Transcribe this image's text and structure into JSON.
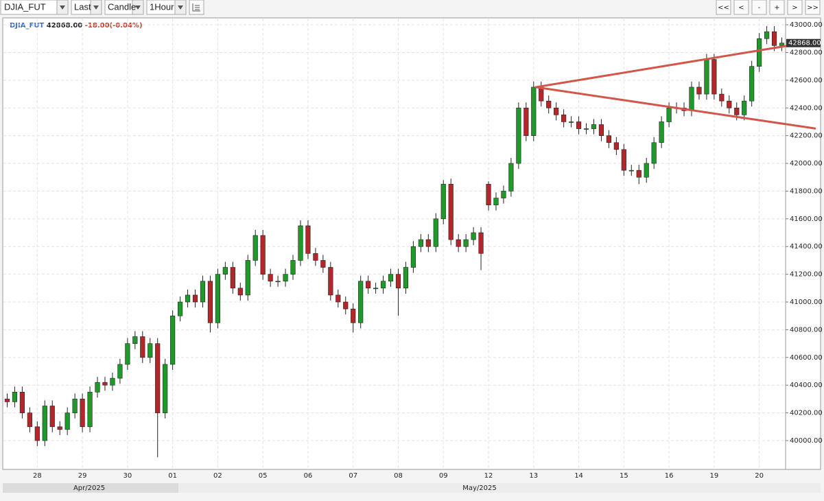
{
  "toolbar": {
    "symbol": "DJIA_FUT",
    "price_type": "Last",
    "chart_type": "Candle",
    "interval": "1Hour",
    "nav": [
      "<<",
      "<",
      "-",
      "+",
      ">",
      ">>"
    ]
  },
  "legend": {
    "symbol": "DJIA_FUT",
    "price": "42868.00",
    "change": "-18.00(-0.04%)"
  },
  "last_price_tag": "42868.00",
  "months": [
    "Apr/2025",
    "May/2025"
  ],
  "chart_data": {
    "type": "candlestick",
    "categories": [
      null,
      null,
      null,
      null,
      "28",
      null,
      null,
      null,
      null,
      null,
      "29",
      null,
      null,
      null,
      null,
      null,
      "30",
      null,
      null,
      null,
      null,
      null,
      "01",
      null,
      null,
      null,
      null,
      null,
      "02",
      null,
      null,
      null,
      null,
      null,
      "05",
      null,
      null,
      null,
      null,
      null,
      "06",
      null,
      null,
      null,
      null,
      null,
      "07",
      null,
      null,
      null,
      null,
      null,
      "08",
      null,
      null,
      null,
      null,
      null,
      "09",
      null,
      null,
      null,
      null,
      null,
      "12",
      null,
      null,
      null,
      null,
      null,
      "13",
      null,
      null,
      null,
      null,
      null,
      "14",
      null,
      null,
      null,
      null,
      null,
      "15",
      null,
      null,
      null,
      null,
      null,
      "16",
      null,
      null,
      null,
      null,
      null,
      "19",
      null,
      null,
      null,
      null,
      null,
      "20",
      null,
      null,
      null
    ],
    "open": [
      40300,
      40280,
      40350,
      40200,
      40100,
      40000,
      40250,
      40100,
      40080,
      40200,
      40300,
      40100,
      40350,
      40420,
      40400,
      40450,
      40550,
      40700,
      40750,
      40600,
      40700,
      40200,
      40550,
      40900,
      41000,
      41050,
      41000,
      41150,
      40850,
      41200,
      41250,
      41100,
      41050,
      41300,
      41480,
      41200,
      41150,
      41150,
      41200,
      41300,
      41550,
      41350,
      41300,
      41250,
      41050,
      41000,
      40950,
      40850,
      41150,
      41100,
      41100,
      41150,
      41200,
      41100,
      41250,
      41400,
      41450,
      41400,
      41600,
      41850,
      41450,
      41400,
      41450,
      41500,
      41850,
      41700,
      41750,
      41800,
      42000,
      42400,
      42200,
      42550,
      42450,
      42400,
      42350,
      42300,
      42300,
      42250,
      42250,
      42280,
      42200,
      42150,
      42100,
      41950,
      41950,
      41900,
      42000,
      42150,
      42300,
      42400,
      42400,
      42380,
      42550,
      42500,
      42750,
      42500,
      42450,
      42400,
      42350,
      42450,
      42700,
      42900,
      42950,
      42850
    ],
    "high": [
      40340,
      40390,
      40390,
      40240,
      40140,
      40290,
      40290,
      40140,
      40240,
      40340,
      40340,
      40390,
      40460,
      40460,
      40490,
      40590,
      40740,
      40790,
      40790,
      40740,
      40740,
      40590,
      40940,
      41040,
      41090,
      41090,
      41190,
      41190,
      41240,
      41290,
      41290,
      41140,
      41340,
      41520,
      41520,
      41240,
      41190,
      41240,
      41340,
      41590,
      41590,
      41390,
      41340,
      41290,
      41090,
      41040,
      40990,
      41190,
      41190,
      41140,
      41190,
      41240,
      41240,
      41290,
      41440,
      41490,
      41490,
      41640,
      41880,
      41890,
      41490,
      41490,
      41540,
      41540,
      41870,
      41790,
      41840,
      42040,
      42440,
      42440,
      42590,
      42590,
      42490,
      42440,
      42390,
      42340,
      42340,
      42290,
      42320,
      42320,
      42240,
      42190,
      42140,
      41990,
      41990,
      42040,
      42190,
      42340,
      42440,
      42440,
      42440,
      42590,
      42590,
      42790,
      42790,
      42540,
      42490,
      42440,
      42490,
      42740,
      42940,
      42990,
      42990,
      42908
    ],
    "low": [
      40240,
      40240,
      40160,
      40060,
      39960,
      39960,
      40060,
      40040,
      40040,
      40160,
      40060,
      40060,
      40310,
      40360,
      40360,
      40410,
      40510,
      40660,
      40560,
      40560,
      39880,
      40160,
      40510,
      40860,
      40960,
      40960,
      40960,
      40780,
      40810,
      41160,
      41060,
      41010,
      41010,
      41260,
      41160,
      41110,
      41110,
      41110,
      41160,
      41260,
      41310,
      41260,
      41210,
      41010,
      40960,
      40910,
      40780,
      40810,
      41060,
      41060,
      41060,
      41110,
      40900,
      41060,
      41210,
      41360,
      41360,
      41360,
      41560,
      41410,
      41360,
      41360,
      41410,
      41230,
      41660,
      41660,
      41710,
      41760,
      41960,
      42160,
      42160,
      42410,
      42360,
      42310,
      42260,
      42260,
      42210,
      42210,
      42210,
      42160,
      42110,
      42060,
      41910,
      41910,
      41850,
      41860,
      41960,
      42110,
      42260,
      42360,
      42340,
      42340,
      42460,
      42460,
      42460,
      42410,
      42360,
      42310,
      42310,
      42410,
      42660,
      42860,
      42810,
      42810
    ],
    "close": [
      40280,
      40350,
      40200,
      40100,
      40000,
      40250,
      40100,
      40080,
      40200,
      40300,
      40100,
      40350,
      40420,
      40400,
      40450,
      40550,
      40700,
      40750,
      40600,
      40700,
      40200,
      40550,
      40900,
      41000,
      41050,
      41000,
      41150,
      40850,
      41200,
      41250,
      41100,
      41050,
      41300,
      41480,
      41200,
      41150,
      41150,
      41200,
      41300,
      41550,
      41350,
      41300,
      41250,
      41050,
      41000,
      40950,
      40850,
      41150,
      41100,
      41100,
      41150,
      41200,
      41100,
      41250,
      41400,
      41450,
      41400,
      41600,
      41850,
      41450,
      41400,
      41450,
      41500,
      41350,
      41700,
      41750,
      41800,
      42000,
      42400,
      42200,
      42550,
      42450,
      42400,
      42350,
      42300,
      42300,
      42250,
      42250,
      42280,
      42200,
      42150,
      42100,
      41950,
      41950,
      41900,
      42000,
      42150,
      42300,
      42400,
      42400,
      42380,
      42550,
      42500,
      42750,
      42500,
      42450,
      42400,
      42350,
      42450,
      42700,
      42900,
      42950,
      42850,
      42868
    ],
    "up_color": "#1f9a2a",
    "down_color": "#b3262a",
    "ylim": [
      39797,
      43045
    ],
    "yticks": [
      {
        "value": 40000,
        "label": "40000.00"
      },
      {
        "value": 40200,
        "label": "40200.00"
      },
      {
        "value": 40400,
        "label": "40400.00"
      },
      {
        "value": 40600,
        "label": "40600.00"
      },
      {
        "value": 40800,
        "label": "40800.00"
      },
      {
        "value": 41000,
        "label": "41000.00"
      },
      {
        "value": 41200,
        "label": "41200.00"
      },
      {
        "value": 41400,
        "label": "41400.00"
      },
      {
        "value": 41600,
        "label": "41600.00"
      },
      {
        "value": 41800,
        "label": "41800.00"
      },
      {
        "value": 42000,
        "label": "42000.00"
      },
      {
        "value": 42200,
        "label": "42200.00"
      },
      {
        "value": 42400,
        "label": "42400.00"
      },
      {
        "value": 42600,
        "label": "42600.00"
      },
      {
        "value": 42800,
        "label": "42800.00"
      },
      {
        "value": 43000,
        "label": "43000.00"
      }
    ],
    "grid": true,
    "trendlines": [
      {
        "x": [
          70.3,
          107.4
        ],
        "y": [
          42550,
          42252
        ],
        "color": "#d2574a"
      },
      {
        "x": [
          70.3,
          107.4
        ],
        "y": [
          42550,
          42881
        ],
        "color": "#d2574a"
      }
    ]
  }
}
